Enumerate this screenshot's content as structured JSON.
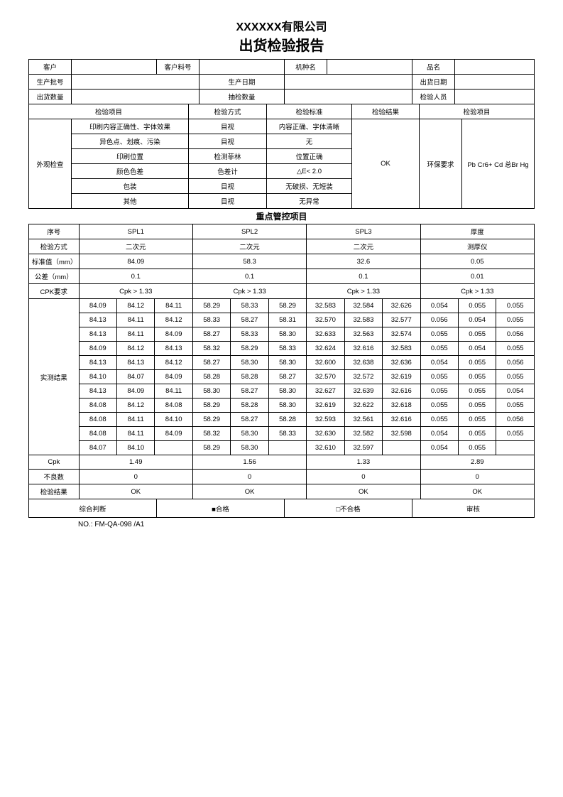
{
  "header": {
    "company": "XXXXXX有限公司",
    "report_title": "出货检验报告"
  },
  "info": {
    "customer_label": "客户",
    "customer_partno_label": "客户料号",
    "model_label": "机种名",
    "product_label": "品名",
    "lot_label": "生产批号",
    "prod_date_label": "生产日期",
    "ship_date_label": "出货日期",
    "ship_qty_label": "出货数量",
    "sample_qty_label": "抽检数量",
    "inspector_label": "检验人员"
  },
  "visual": {
    "col_item": "检验项目",
    "col_method": "检验方式",
    "col_standard": "检验标准",
    "col_result": "检验结果",
    "col_item2": "检验项目",
    "group_label": "外观检查",
    "rows": [
      {
        "item": "印刷内容正确性、字体效果",
        "method": "目视",
        "standard": "内容正确、字体清晰"
      },
      {
        "item": "异色点、划痕、污染",
        "method": "目视",
        "standard": "无"
      },
      {
        "item": "印刷位置",
        "method": "检测菲林",
        "standard": "位置正确"
      },
      {
        "item": "颜色色差",
        "method": "色差计",
        "standard": "△E< 2.0"
      },
      {
        "item": "包装",
        "method": "目视",
        "standard": "无破损、无短装"
      },
      {
        "item": "其他",
        "method": "目视",
        "standard": "无异常"
      }
    ],
    "result": "OK",
    "env_label": "环保要求",
    "env_value": "Pb Cr6+  Cd 总Br   Hg"
  },
  "kpi_section_title": "重点管控项目",
  "kpi": {
    "row_labels": {
      "seq": "序号",
      "method": "检验方式",
      "std": "标准值（mm）",
      "tol": "公差（mm）",
      "cpk_req": "CPK要求",
      "measured": "实测结果",
      "cpk": "Cpk",
      "defects": "不良数",
      "result": "检验结果"
    },
    "cols": [
      {
        "name": "SPL1",
        "method": "二次元",
        "std": "84.09",
        "tol": "0.1",
        "cpk_req": "Cpk > 1.33",
        "measured": [
          [
            "84.09",
            "84.12",
            "84.11"
          ],
          [
            "84.13",
            "84.11",
            "84.12"
          ],
          [
            "84.13",
            "84.11",
            "84.09"
          ],
          [
            "84.09",
            "84.12",
            "84.13"
          ],
          [
            "84.13",
            "84.13",
            "84.12"
          ],
          [
            "84.10",
            "84.07",
            "84.09"
          ],
          [
            "84.13",
            "84.09",
            "84.11"
          ],
          [
            "84.08",
            "84.12",
            "84.08"
          ],
          [
            "84.08",
            "84.11",
            "84.10"
          ],
          [
            "84.08",
            "84.11",
            "84.09"
          ],
          [
            "84.07",
            "84.10",
            ""
          ]
        ],
        "cpk": "1.49",
        "defects": "0",
        "result": "OK"
      },
      {
        "name": "SPL2",
        "method": "二次元",
        "std": "58.3",
        "tol": "0.1",
        "cpk_req": "Cpk > 1.33",
        "measured": [
          [
            "58.29",
            "58.33",
            "58.29"
          ],
          [
            "58.33",
            "58.27",
            "58.31"
          ],
          [
            "58.27",
            "58.33",
            "58.30"
          ],
          [
            "58.32",
            "58.29",
            "58.33"
          ],
          [
            "58.27",
            "58.30",
            "58.30"
          ],
          [
            "58.28",
            "58.28",
            "58.27"
          ],
          [
            "58.30",
            "58.27",
            "58.30"
          ],
          [
            "58.29",
            "58.28",
            "58.30"
          ],
          [
            "58.29",
            "58.27",
            "58.28"
          ],
          [
            "58.32",
            "58.30",
            "58.33"
          ],
          [
            "58.29",
            "58.30",
            ""
          ]
        ],
        "cpk": "1.56",
        "defects": "0",
        "result": "OK"
      },
      {
        "name": "SPL3",
        "method": "二次元",
        "std": "32.6",
        "tol": "0.1",
        "cpk_req": "Cpk > 1.33",
        "measured": [
          [
            "32.583",
            "32.584",
            "32.626"
          ],
          [
            "32.570",
            "32.583",
            "32.577"
          ],
          [
            "32.633",
            "32.563",
            "32.574"
          ],
          [
            "32.624",
            "32.616",
            "32.583"
          ],
          [
            "32.600",
            "32.638",
            "32.636"
          ],
          [
            "32.570",
            "32.572",
            "32.619"
          ],
          [
            "32.627",
            "32.639",
            "32.616"
          ],
          [
            "32.619",
            "32.622",
            "32.618"
          ],
          [
            "32.593",
            "32.561",
            "32.616"
          ],
          [
            "32.630",
            "32.582",
            "32.598"
          ],
          [
            "32.610",
            "32.597",
            ""
          ]
        ],
        "cpk": "1.33",
        "defects": "0",
        "result": "OK"
      },
      {
        "name": "厚度",
        "method": "测厚仪",
        "std": "0.05",
        "tol": "0.01",
        "cpk_req": "Cpk > 1.33",
        "measured": [
          [
            "0.054",
            "0.055",
            "0.055"
          ],
          [
            "0.056",
            "0.054",
            "0.055"
          ],
          [
            "0.055",
            "0.055",
            "0.056"
          ],
          [
            "0.055",
            "0.054",
            "0.055"
          ],
          [
            "0.054",
            "0.055",
            "0.056"
          ],
          [
            "0.055",
            "0.055",
            "0.055"
          ],
          [
            "0.055",
            "0.055",
            "0.054"
          ],
          [
            "0.055",
            "0.055",
            "0.055"
          ],
          [
            "0.055",
            "0.055",
            "0.056"
          ],
          [
            "0.054",
            "0.055",
            "0.055"
          ],
          [
            "0.054",
            "0.055",
            ""
          ]
        ],
        "cpk": "2.89",
        "defects": "0",
        "result": "OK"
      }
    ]
  },
  "judgement": {
    "label": "综合判断",
    "pass": "■合格",
    "fail": "□不合格",
    "review": "审核"
  },
  "footer_no": "NO.: FM-QA-098 /A1",
  "style": {
    "background": "#ffffff",
    "border_color": "#000000",
    "text_color": "#000000"
  }
}
